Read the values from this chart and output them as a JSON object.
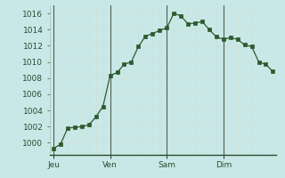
{
  "background_color": "#c8e8e8",
  "grid_color_minor": "#d0e0d8",
  "grid_color_major": "#b8ccc8",
  "line_color": "#2d5a2d",
  "marker_color": "#2d5a2d",
  "separator_color": "#506050",
  "x_tick_labels": [
    "Jeu",
    "Ven",
    "Sam",
    "Dim"
  ],
  "x_tick_positions": [
    0,
    8,
    16,
    24
  ],
  "ylim": [
    998.5,
    1017.0
  ],
  "yticks": [
    1000,
    1002,
    1004,
    1006,
    1008,
    1010,
    1012,
    1014,
    1016
  ],
  "xlim": [
    -0.5,
    31.5
  ],
  "data_x": [
    0,
    1,
    2,
    3,
    4,
    5,
    6,
    7,
    8,
    9,
    10,
    11,
    12,
    13,
    14,
    15,
    16,
    17,
    18,
    19,
    20,
    21,
    22,
    23,
    24,
    25,
    26,
    27,
    28,
    29,
    30,
    31
  ],
  "data_y": [
    999.3,
    999.8,
    1001.8,
    1001.9,
    1002.0,
    1002.2,
    1003.2,
    1004.5,
    1008.3,
    1008.7,
    1009.7,
    1010.0,
    1011.9,
    1013.2,
    1013.5,
    1013.9,
    1014.2,
    1016.0,
    1015.7,
    1014.7,
    1014.8,
    1015.0,
    1014.0,
    1013.1,
    1012.8,
    1013.0,
    1012.8,
    1012.1,
    1011.9,
    1010.0,
    1009.7,
    1008.8
  ]
}
